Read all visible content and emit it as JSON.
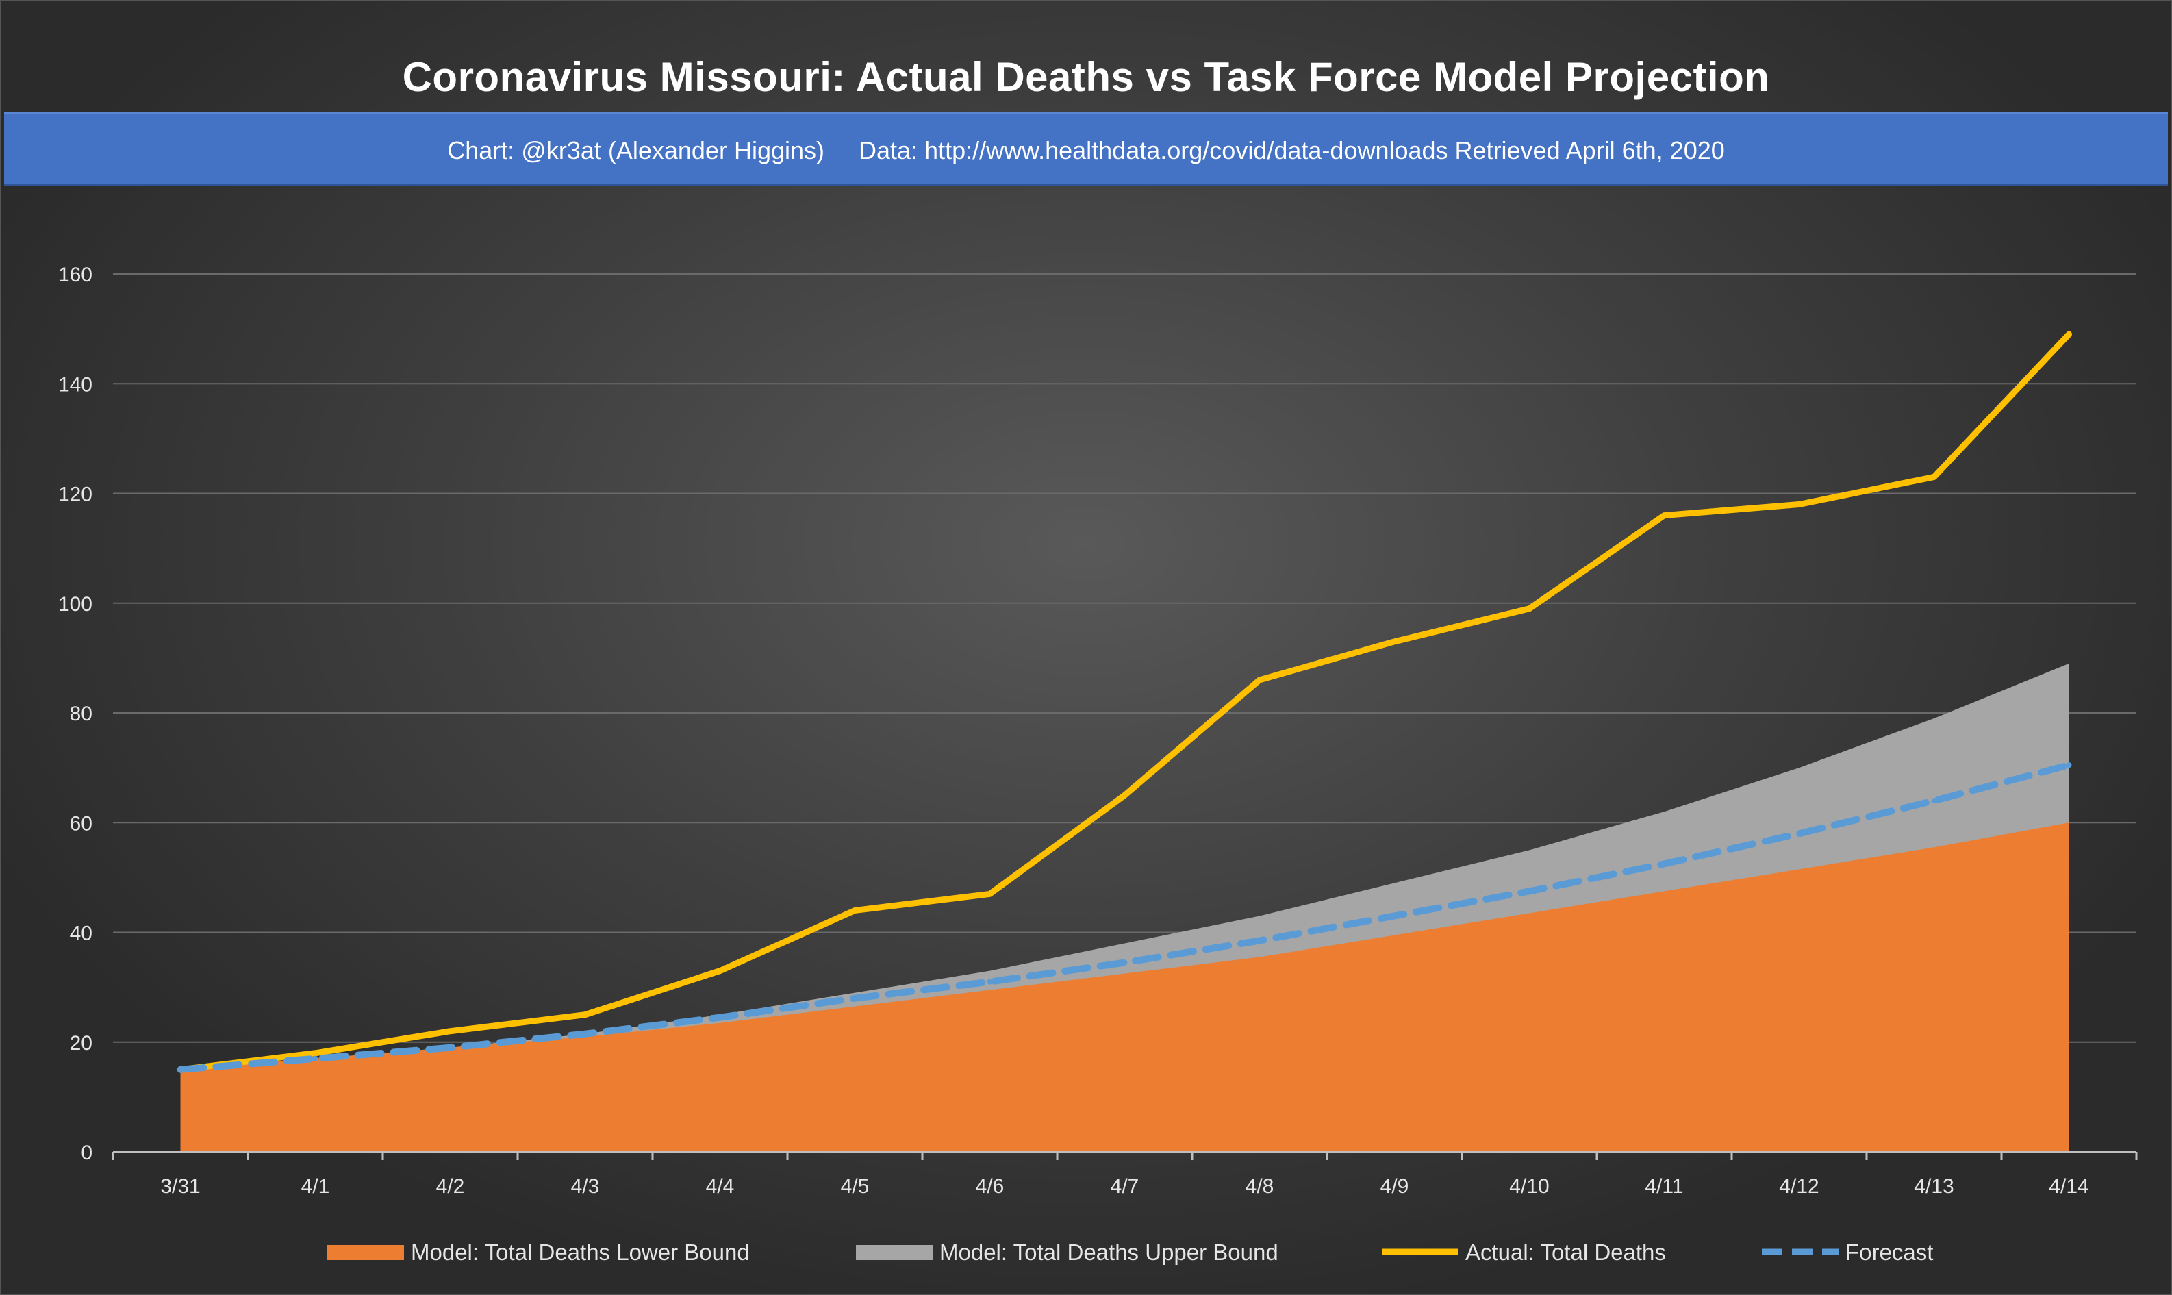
{
  "chart_data": {
    "type": "line",
    "title": "Coronavirus Missouri: Actual Deaths vs Task Force Model Projection",
    "subtitle": "Chart: @kr3at (Alexander Higgins)     Data: http://www.healthdata.org/covid/data-downloads Retrieved April 6th, 2020",
    "categories": [
      "3/31",
      "4/1",
      "4/2",
      "4/3",
      "4/4",
      "4/5",
      "4/6",
      "4/7",
      "4/8",
      "4/9",
      "4/10",
      "4/11",
      "4/12",
      "4/13",
      "4/14"
    ],
    "yticks": [
      0,
      20,
      40,
      60,
      80,
      100,
      120,
      140,
      160
    ],
    "ylim": [
      0,
      160
    ],
    "grid": true,
    "legend_position": "bottom",
    "series": [
      {
        "name": "Model: Total Deaths Lower Bound",
        "kind": "area",
        "color": "#ed7d31",
        "values": [
          15,
          17,
          19,
          21,
          23.5,
          26.5,
          29.5,
          32.5,
          35.5,
          39.5,
          43.5,
          47.5,
          51.5,
          55.5,
          60
        ]
      },
      {
        "name": "Model: Total Deaths Upper Bound",
        "kind": "area",
        "color": "#a6a6a6",
        "values": [
          15,
          17,
          19,
          21.5,
          25,
          29,
          33,
          38,
          43,
          49,
          55,
          62,
          70,
          79,
          89
        ]
      },
      {
        "name": "Actual: Total Deaths",
        "kind": "line",
        "color": "#ffc000",
        "values": [
          15,
          18,
          22,
          25,
          33,
          44,
          47,
          65,
          86,
          93,
          99,
          116,
          118,
          123,
          149
        ]
      },
      {
        "name": "Forecast",
        "kind": "dashed-line",
        "color": "#5b9bd5",
        "values": [
          15,
          17,
          19,
          21.5,
          24.5,
          28,
          31,
          34.5,
          38.5,
          43,
          47.5,
          52.5,
          58,
          64,
          70.5
        ]
      }
    ]
  }
}
